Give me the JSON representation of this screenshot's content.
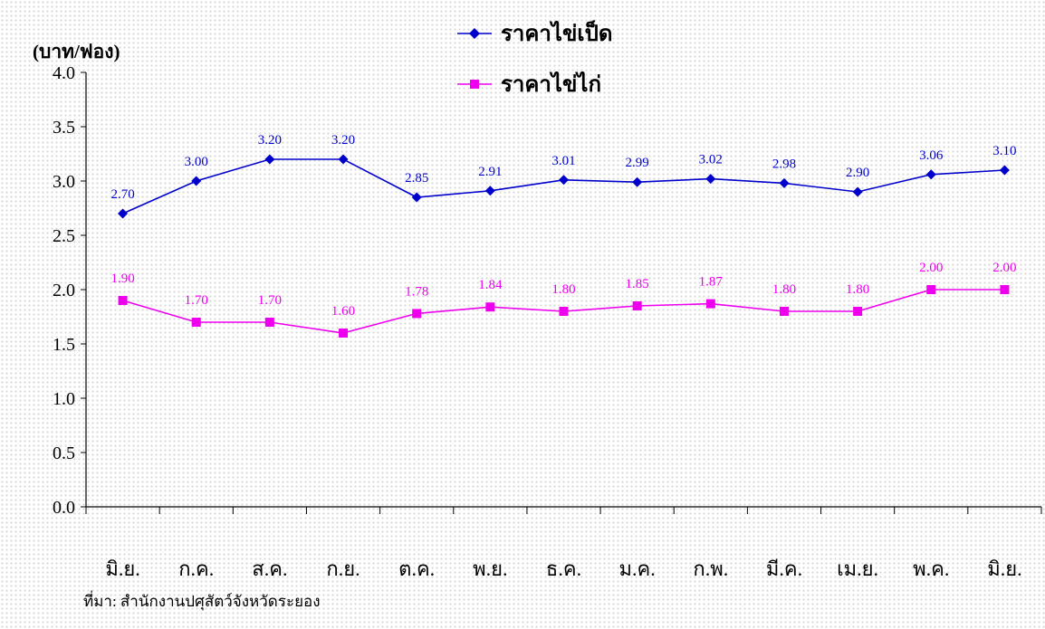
{
  "chart_data": {
    "type": "line",
    "ylabel": "(บาท/ฟอง)",
    "categories": [
      "มิ.ย.",
      "ก.ค.",
      "ส.ค.",
      "ก.ย.",
      "ต.ค.",
      "พ.ย.",
      "ธ.ค.",
      "ม.ค.",
      "ก.พ.",
      "มี.ค.",
      "เม.ย.",
      "พ.ค.",
      "มิ.ย."
    ],
    "ylim": [
      0,
      4.0
    ],
    "yticks": [
      "0.0",
      "0.5",
      "1.0",
      "1.5",
      "2.0",
      "2.5",
      "3.0",
      "3.5",
      "4.0"
    ],
    "grid": false,
    "legend_position": "top-center",
    "series": [
      {
        "name": "ราคาไข่เป็ด",
        "color": "#0000cc",
        "marker": "diamond",
        "values": [
          2.7,
          3.0,
          3.2,
          3.2,
          2.85,
          2.91,
          3.01,
          2.99,
          3.02,
          2.98,
          2.9,
          3.06,
          3.1
        ],
        "labels": [
          "2.70",
          "3.00",
          "3.20",
          "3.20",
          "2.85",
          "2.91",
          "3.01",
          "2.99",
          "3.02",
          "2.98",
          "2.90",
          "3.06",
          "3.10"
        ]
      },
      {
        "name": "ราคาไข่ไก่",
        "color": "#ee00ee",
        "marker": "square",
        "values": [
          1.9,
          1.7,
          1.7,
          1.6,
          1.78,
          1.84,
          1.8,
          1.85,
          1.87,
          1.8,
          1.8,
          2.0,
          2.0
        ],
        "labels": [
          "1.90",
          "1.70",
          "1.70",
          "1.60",
          "1.78",
          "1.84",
          "1.80",
          "1.85",
          "1.87",
          "1.80",
          "1.80",
          "2.00",
          "2.00"
        ]
      }
    ],
    "source_note": "ที่มา: สำนักงานปศุสัตว์จังหวัดระยอง"
  }
}
